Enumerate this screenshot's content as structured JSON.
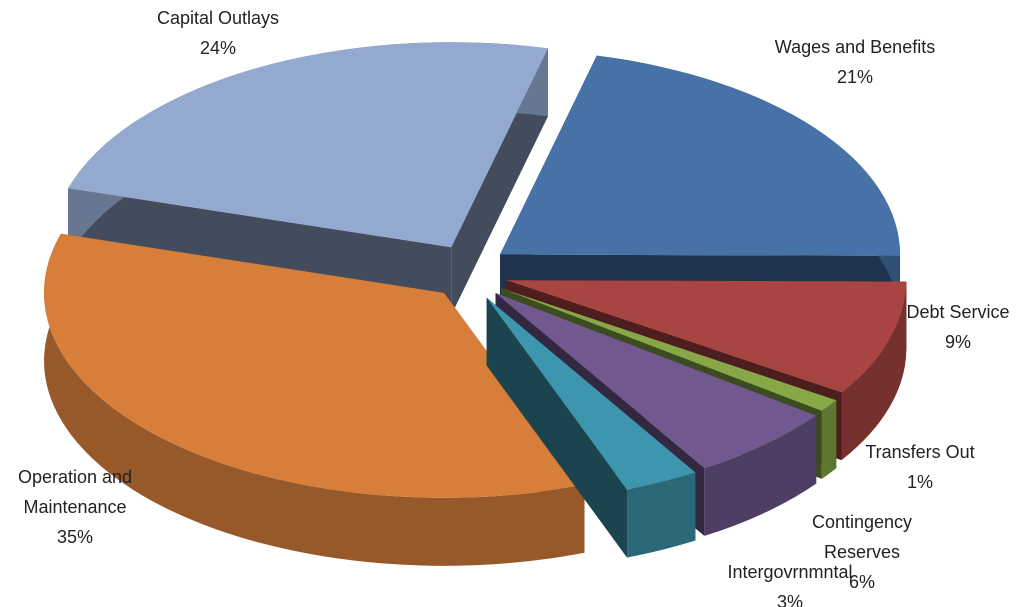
{
  "chart_data": {
    "type": "pie",
    "categories": [
      "Wages and Benefits",
      "Debt Service",
      "Transfers Out",
      "Contingency Reserves",
      "Intergovrnmntal",
      "Operation and Maintenance",
      "Capital Outlays"
    ],
    "values": [
      21,
      9,
      1,
      6,
      3,
      35,
      24
    ],
    "value_labels": [
      "21%",
      "9%",
      "1%",
      "6%",
      "3%",
      "35%",
      "24%"
    ],
    "colors": [
      "#4672a8",
      "#a84442",
      "#88a848",
      "#71588f",
      "#3d96ad",
      "#d77f3a",
      "#93a9cf"
    ]
  }
}
